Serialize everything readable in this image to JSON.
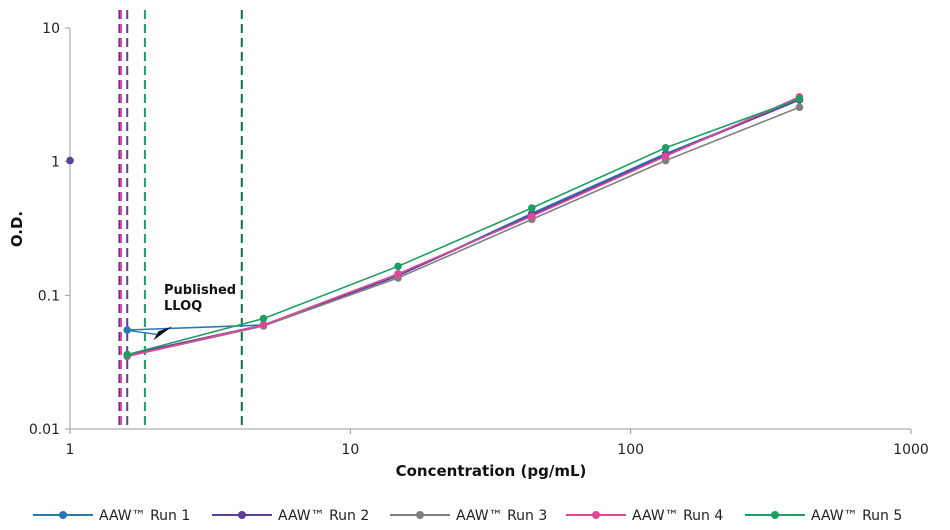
{
  "chart_data": {
    "type": "line",
    "title": "",
    "xlabel": "Concentration (pg/mL)",
    "ylabel": "O.D.",
    "x_scale": "log",
    "y_scale": "log",
    "xlim": [
      1,
      1000
    ],
    "ylim": [
      0.01,
      10
    ],
    "x_ticks": [
      1,
      10,
      100,
      1000
    ],
    "x_tick_labels": [
      "1",
      "10",
      "100",
      "1000"
    ],
    "y_ticks": [
      0.01,
      0.1,
      1,
      10
    ],
    "y_tick_labels": [
      "0.01",
      "0.1",
      "1",
      "10"
    ],
    "grid": false,
    "legend_position": "bottom",
    "series": [
      {
        "name": "AAW™ Run 1",
        "color": "#2878b5",
        "points": [
          [
            1.6,
            0.055
          ],
          [
            4.9,
            0.06
          ],
          [
            14.8,
            0.14
          ],
          [
            44.4,
            0.41
          ],
          [
            133.3,
            1.15
          ],
          [
            400,
            2.9
          ]
        ]
      },
      {
        "name": "AAW™ Run 2",
        "color": "#5b3f99",
        "isolated_points": [
          [
            1,
            1.02
          ]
        ],
        "points": [
          [
            1.6,
            0.036
          ],
          [
            4.9,
            0.06
          ],
          [
            14.8,
            0.14
          ],
          [
            44.4,
            0.4
          ],
          [
            133.3,
            1.12
          ],
          [
            400,
            2.9
          ]
        ]
      },
      {
        "name": "AAW™ Run 3",
        "color": "#808080",
        "points": [
          [
            1.6,
            0.035
          ],
          [
            4.9,
            0.059
          ],
          [
            14.8,
            0.135
          ],
          [
            44.4,
            0.37
          ],
          [
            133.3,
            1.02
          ],
          [
            400,
            2.55
          ]
        ]
      },
      {
        "name": "AAW™ Run 4",
        "color": "#e0479a",
        "points": [
          [
            1.6,
            0.035
          ],
          [
            4.9,
            0.06
          ],
          [
            14.8,
            0.145
          ],
          [
            44.4,
            0.39
          ],
          [
            133.3,
            1.1
          ],
          [
            400,
            3.05
          ]
        ]
      },
      {
        "name": "AAW™ Run 5",
        "color": "#1e9e63",
        "points": [
          [
            1.6,
            0.036
          ],
          [
            4.9,
            0.067
          ],
          [
            14.8,
            0.165
          ],
          [
            44.4,
            0.45
          ],
          [
            133.3,
            1.27
          ],
          [
            400,
            2.95
          ]
        ]
      }
    ],
    "vertical_lines": [
      {
        "x": 1.5,
        "color": "#5b3f99"
      },
      {
        "x": 1.52,
        "color": "#e0479a"
      },
      {
        "x": 1.6,
        "color": "#5b3f99"
      },
      {
        "x": 1.85,
        "color": "#1e9e63"
      },
      {
        "x": 4.1,
        "color": "#0f6e45"
      }
    ],
    "annotations": [
      {
        "lines": [
          "Published",
          "LLOQ"
        ],
        "arrow_from": [
          2.05,
          0.051
        ],
        "arrow_to": [
          1.62,
          0.0545
        ]
      }
    ]
  }
}
